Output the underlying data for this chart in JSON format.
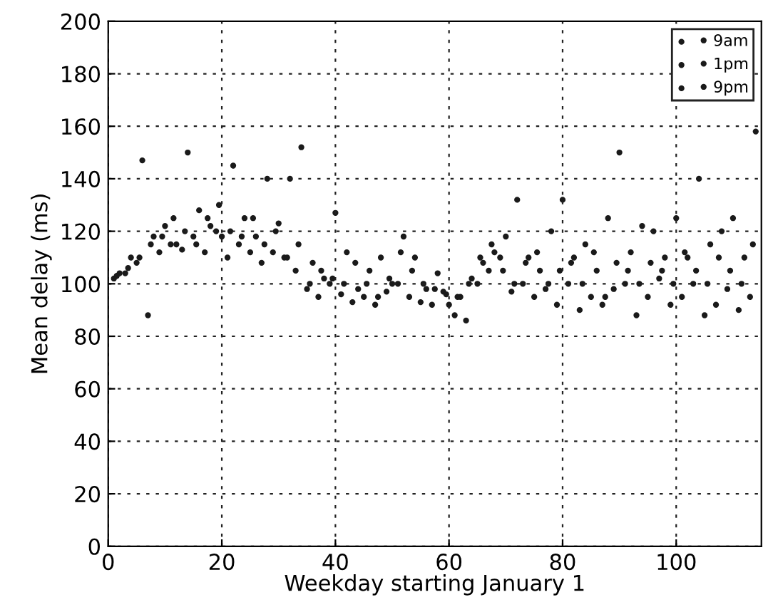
{
  "chart_data": {
    "type": "scatter",
    "xlabel": "Weekday starting January 1",
    "ylabel": "Mean delay (ms)",
    "xlim": [
      0,
      115
    ],
    "xticks": [
      0,
      20,
      40,
      60,
      80,
      100
    ],
    "ylim": [
      0,
      200
    ],
    "yticks": [
      0,
      20,
      40,
      60,
      80,
      100,
      120,
      140,
      160,
      180,
      200
    ],
    "grid": true,
    "legend": "top right",
    "marker": "circle",
    "series": [
      {
        "name": "9am",
        "color": "#1a1a1a",
        "x": [
          1,
          3,
          5,
          7,
          9,
          11,
          13,
          15,
          17,
          19,
          21,
          23,
          25,
          27,
          29,
          31,
          33,
          35,
          37,
          39,
          41,
          43,
          45,
          47,
          49,
          51,
          53,
          55,
          57,
          59,
          61,
          63,
          65,
          67,
          69,
          71,
          73,
          75,
          77,
          79,
          81,
          83,
          85,
          87,
          89,
          91,
          93,
          95,
          97,
          99,
          101,
          103,
          105,
          107,
          109,
          111,
          113
        ],
        "values": [
          102,
          104,
          108,
          88,
          112,
          115,
          113,
          118,
          112,
          120,
          110,
          115,
          112,
          108,
          112,
          110,
          105,
          98,
          95,
          100,
          96,
          93,
          95,
          92,
          97,
          100,
          95,
          93,
          92,
          97,
          88,
          86,
          100,
          105,
          110,
          97,
          100,
          95,
          98,
          92,
          100,
          90,
          95,
          92,
          98,
          100,
          88,
          95,
          102,
          92,
          95,
          100,
          88,
          92,
          98,
          90,
          95
        ]
      },
      {
        "name": "1pm",
        "color": "#1a1a1a",
        "x": [
          2,
          4,
          6,
          8,
          10,
          12,
          14,
          16,
          18,
          20,
          22,
          24,
          26,
          28,
          30,
          32,
          34,
          36,
          38,
          40,
          42,
          44,
          46,
          48,
          50,
          52,
          54,
          56,
          58,
          60,
          62,
          64,
          66,
          68,
          70,
          72,
          74,
          76,
          78,
          80,
          82,
          84,
          86,
          88,
          90,
          92,
          94,
          96,
          98,
          100,
          102,
          104,
          106,
          108,
          110,
          112,
          114
        ],
        "values": [
          104,
          110,
          147,
          118,
          122,
          115,
          150,
          128,
          122,
          118,
          145,
          125,
          118,
          140,
          123,
          140,
          152,
          108,
          102,
          127,
          112,
          98,
          105,
          110,
          100,
          118,
          110,
          98,
          104,
          92,
          95,
          102,
          108,
          112,
          118,
          132,
          110,
          105,
          120,
          132,
          110,
          115,
          105,
          125,
          150,
          112,
          122,
          120,
          110,
          125,
          110,
          140,
          115,
          120,
          125,
          110,
          158
        ]
      },
      {
        "name": "9pm",
        "color": "#1a1a1a",
        "x": [
          1.5,
          3.5,
          5.5,
          7.5,
          9.5,
          11.5,
          13.5,
          15.5,
          17.5,
          19.5,
          21.5,
          23.5,
          25.5,
          27.5,
          29.5,
          31.5,
          33.5,
          35.5,
          37.5,
          39.5,
          41.5,
          43.5,
          45.5,
          47.5,
          49.5,
          51.5,
          53.5,
          55.5,
          57.5,
          59.5,
          61.5,
          63.5,
          65.5,
          67.5,
          69.5,
          71.5,
          73.5,
          75.5,
          77.5,
          79.5,
          81.5,
          83.5,
          85.5,
          87.5,
          89.5,
          91.5,
          93.5,
          95.5,
          97.5,
          99.5,
          101.5,
          103.5,
          105.5,
          107.5,
          109.5,
          111.5,
          113.5
        ],
        "values": [
          103,
          106,
          110,
          115,
          118,
          125,
          120,
          115,
          125,
          130,
          120,
          118,
          125,
          115,
          120,
          110,
          115,
          100,
          105,
          102,
          100,
          108,
          100,
          95,
          102,
          112,
          105,
          100,
          98,
          96,
          95,
          100,
          110,
          115,
          105,
          100,
          108,
          112,
          100,
          105,
          108,
          100,
          112,
          95,
          108,
          105,
          100,
          108,
          105,
          100,
          112,
          105,
          100,
          110,
          105,
          100,
          115
        ]
      }
    ]
  }
}
